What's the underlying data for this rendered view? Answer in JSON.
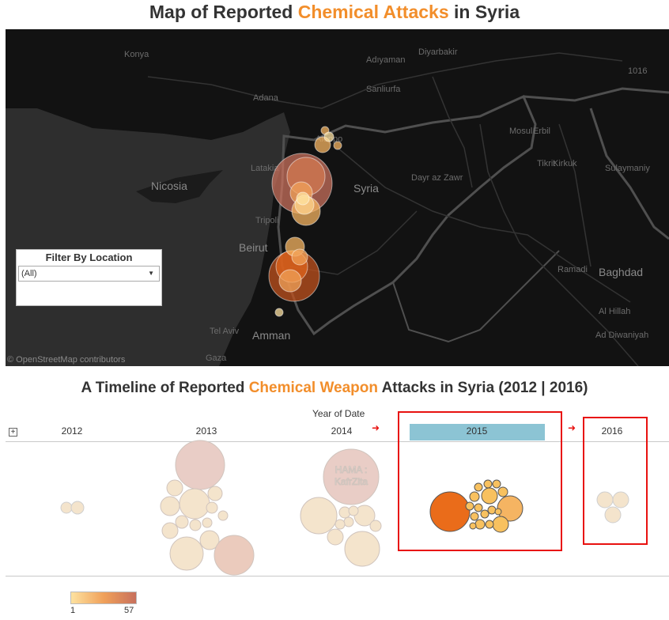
{
  "header": {
    "title_pre": "Map of Reported ",
    "title_accent": "Chemical Attacks",
    "title_post": " in Syria"
  },
  "map": {
    "cities": {
      "konya": "Konya",
      "adiyaman": "Adıyaman",
      "diyarbakir": "Diyarbakir",
      "sanliurfa": "Sanliurfa",
      "adana": "Adana",
      "aleppo": "Aleppo",
      "latakia": "Latakia",
      "nicosia": "Nicosia",
      "syria": "Syria",
      "dayr_az_zawr": "Dayr az Zawr",
      "tripoli": "Tripoli",
      "beirut": "Beirut",
      "tel_aviv": "Tel Aviv",
      "amman": "Amman",
      "gaza": "Gaza",
      "ramadi": "Ramadi",
      "baghdad": "Baghdad",
      "al_hillah": "Al Hillah",
      "ad_diwaniyah": "Ad Diwaniyah",
      "sulaymaniyah": "Sulaymaniy",
      "mosul": "Mosul",
      "erbil": "Erbil",
      "kirkuk": "Kirkuk",
      "tikrit": "Tikrit",
      "a_1016": "1016"
    },
    "attribution": "© OpenStreetMap contributors",
    "colors": {
      "background": "#121212",
      "roads": "#4a4a4a",
      "land": "#1b1b1b",
      "water": "#2e2e2e"
    }
  },
  "filter": {
    "title": "Filter By Location",
    "selected": "(All)",
    "caret_icon": "caret-down-icon"
  },
  "timeline": {
    "title_pre": "A Timeline of Reported ",
    "title_accent": "Chemical Weapon",
    "title_post": " Attacks in Syria (2012 | 2016)",
    "axis_title": "Year of Date",
    "expand_symbol": "+",
    "years": [
      "2012",
      "2013",
      "2014",
      "2015",
      "2016"
    ],
    "highlighted_year": "2015",
    "bubble_label": "HAMA :\nKafrZita",
    "bubble_label_line1": "HAMA :",
    "bubble_label_line2": "KafrZita",
    "arrow_glyph": "➜",
    "highlight_color": "#8cc4d4",
    "annotation_color": "#e8110f"
  },
  "legend": {
    "min": "1",
    "max": "57",
    "color_low": "#fde2a0",
    "color_high": "#c8705c"
  }
}
